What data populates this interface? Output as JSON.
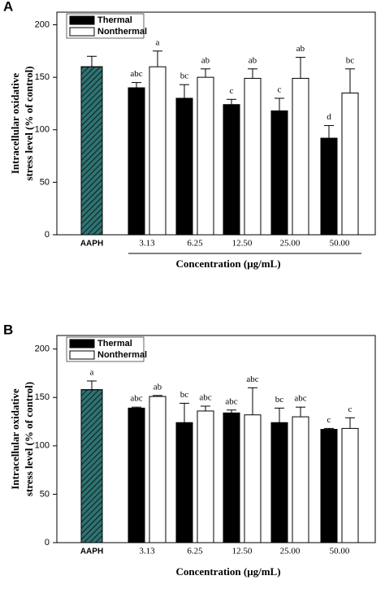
{
  "chart_data": [
    {
      "type": "bar",
      "panel": "A",
      "ylabel": [
        "Intracellular oxidative",
        "stress level (% of control)"
      ],
      "xlabel": "Concentration (μg/mL)",
      "categories": [
        "AAPH",
        "3.13",
        "6.25",
        "12.50",
        "25.00",
        "50.00"
      ],
      "control": {
        "value": 160,
        "error": 10,
        "color": "#2f7272"
      },
      "series": [
        {
          "name": "Thermal",
          "color": "#000000",
          "values": [
            null,
            140,
            130,
            124,
            118,
            92
          ],
          "errors": [
            null,
            5,
            13,
            5,
            12,
            12
          ],
          "letters": [
            null,
            "abc",
            "bc",
            "c",
            "c",
            "d"
          ]
        },
        {
          "name": "Nonthermal",
          "color": "#ffffff",
          "values": [
            null,
            160,
            150,
            149,
            149,
            135
          ],
          "errors": [
            null,
            15,
            8,
            9,
            20,
            23
          ],
          "letters": [
            null,
            "a",
            "ab",
            "ab",
            "ab",
            "bc"
          ]
        }
      ],
      "ylim": [
        0,
        212
      ],
      "yticks": [
        0,
        50,
        100,
        150,
        200
      ],
      "legend": "upper left"
    },
    {
      "type": "bar",
      "panel": "B",
      "ylabel": [
        "Intracellular oxidative",
        "stress level (% of control)"
      ],
      "xlabel": "Concentration (μg/mL)",
      "categories": [
        "AAPH",
        "3.13",
        "6.25",
        "12.50",
        "25.00",
        "50.00"
      ],
      "control": {
        "value": 158,
        "error": 9,
        "color": "#2f7272",
        "letter": "a"
      },
      "series": [
        {
          "name": "Thermal",
          "color": "#000000",
          "values": [
            null,
            139,
            124,
            134,
            124,
            117
          ],
          "errors": [
            null,
            1,
            20,
            3,
            15,
            1
          ],
          "letters": [
            null,
            "abc",
            "bc",
            "abc",
            "bc",
            "c"
          ]
        },
        {
          "name": "Nonthermal",
          "color": "#ffffff",
          "values": [
            null,
            151,
            136,
            132,
            130,
            118
          ],
          "errors": [
            null,
            1,
            5,
            28,
            10,
            11
          ],
          "letters": [
            null,
            "ab",
            "abc",
            "abc",
            "abc",
            "c"
          ]
        }
      ],
      "ylim": [
        0,
        214
      ],
      "yticks": [
        0,
        50,
        100,
        150,
        200
      ],
      "legend": "upper left"
    }
  ]
}
